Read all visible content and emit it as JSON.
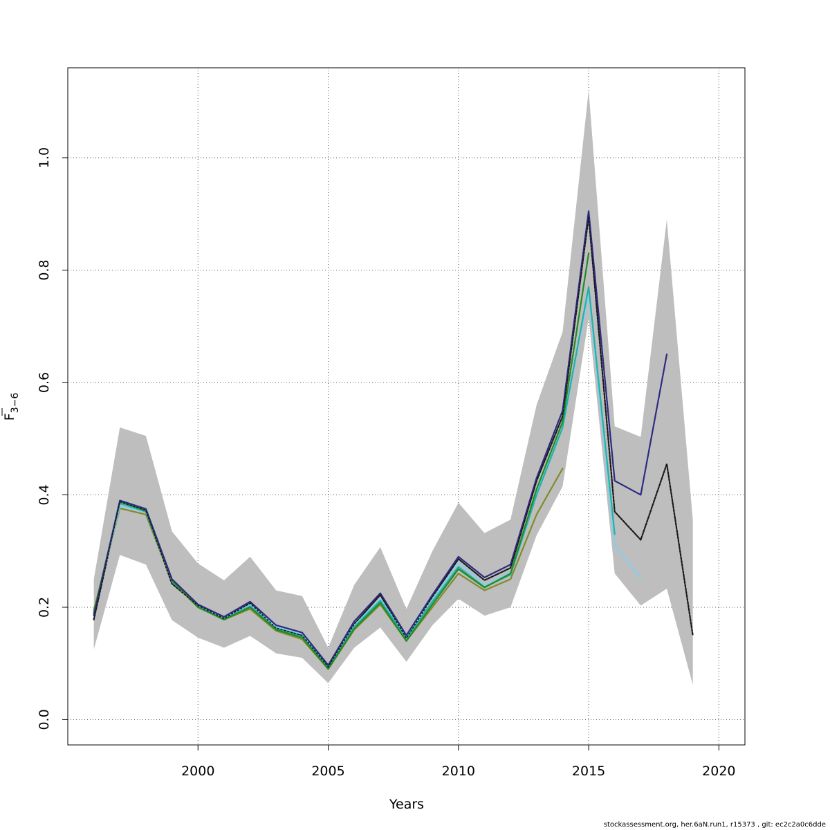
{
  "footer": "stockassessment.org, her.6aN.run1, r15373 , git: ec2c2a0c6dde",
  "chart_data": {
    "type": "line",
    "xlabel": "Years",
    "ylabel": "F",
    "ylabel_subscript": "3−6",
    "xlim": [
      1995,
      2021
    ],
    "ylim": [
      -0.045,
      1.16
    ],
    "xticks": [
      2000,
      2005,
      2010,
      2015,
      2020
    ],
    "yticks": [
      0.0,
      0.2,
      0.4,
      0.6,
      0.8,
      1.0
    ],
    "ytick_labels": [
      "0.0",
      "0.2",
      "0.4",
      "0.6",
      "0.8",
      "1.0"
    ],
    "grid": true,
    "confidence_band": {
      "color": "#bebebe",
      "x": [
        1996,
        1997,
        1998,
        1999,
        2000,
        2001,
        2002,
        2003,
        2004,
        2005,
        2006,
        2007,
        2008,
        2009,
        2010,
        2011,
        2012,
        2013,
        2014,
        2015,
        2016,
        2017,
        2018,
        2019
      ],
      "upper": [
        0.25,
        0.52,
        0.505,
        0.335,
        0.278,
        0.248,
        0.29,
        0.23,
        0.22,
        0.128,
        0.24,
        0.307,
        0.197,
        0.3,
        0.386,
        0.332,
        0.356,
        0.56,
        0.69,
        1.12,
        0.522,
        0.503,
        0.89,
        0.355
      ],
      "lower": [
        0.125,
        0.293,
        0.276,
        0.177,
        0.146,
        0.128,
        0.149,
        0.118,
        0.11,
        0.065,
        0.128,
        0.164,
        0.103,
        0.168,
        0.215,
        0.185,
        0.2,
        0.328,
        0.415,
        0.715,
        0.26,
        0.203,
        0.233,
        0.062
      ]
    },
    "series": [
      {
        "color": "#1a1a1a",
        "dashed": true,
        "width": 2.2,
        "x": [
          1996,
          1997,
          1998,
          1999,
          2000,
          2001,
          2002,
          2003,
          2004,
          2005,
          2006,
          2007,
          2008,
          2009,
          2010,
          2011,
          2012,
          2013,
          2014,
          2015,
          2016,
          2017,
          2018,
          2019
        ],
        "values": [
          0.178,
          0.388,
          0.372,
          0.242,
          0.203,
          0.18,
          0.207,
          0.163,
          0.15,
          0.094,
          0.17,
          0.222,
          0.145,
          0.218,
          0.286,
          0.248,
          0.27,
          0.425,
          0.54,
          0.895,
          0.37,
          0.32,
          0.455,
          0.15
        ]
      },
      {
        "color": "#808b2a",
        "dashed": false,
        "width": 2.2,
        "x": [
          1996,
          1997,
          1998,
          1999,
          2000,
          2001,
          2002,
          2003,
          2004,
          2005,
          2006,
          2007,
          2008,
          2009,
          2010,
          2011,
          2012,
          2013,
          2014
        ],
        "values": [
          0.195,
          0.376,
          0.365,
          0.245,
          0.2,
          0.178,
          0.197,
          0.158,
          0.143,
          0.09,
          0.16,
          0.205,
          0.14,
          0.2,
          0.26,
          0.23,
          0.25,
          0.365,
          0.447
        ]
      },
      {
        "color": "#87ceeb",
        "dashed": false,
        "width": 2.2,
        "x": [
          1996,
          1997,
          1998,
          1999,
          2000,
          2001,
          2002,
          2003,
          2004,
          2005,
          2006,
          2007,
          2008,
          2009,
          2010,
          2011,
          2012,
          2013,
          2014,
          2015,
          2016,
          2017
        ],
        "values": [
          0.19,
          0.38,
          0.37,
          0.248,
          0.202,
          0.18,
          0.205,
          0.165,
          0.152,
          0.095,
          0.168,
          0.215,
          0.148,
          0.215,
          0.28,
          0.24,
          0.262,
          0.405,
          0.52,
          0.76,
          0.31,
          0.252
        ]
      },
      {
        "color": "#20b2aa",
        "dashed": false,
        "width": 2.2,
        "x": [
          1996,
          1997,
          1998,
          1999,
          2000,
          2001,
          2002,
          2003,
          2004,
          2005,
          2006,
          2007,
          2008,
          2009,
          2010,
          2011,
          2012,
          2013,
          2014,
          2015,
          2016
        ],
        "values": [
          0.188,
          0.385,
          0.37,
          0.246,
          0.201,
          0.179,
          0.202,
          0.162,
          0.148,
          0.093,
          0.165,
          0.212,
          0.145,
          0.21,
          0.272,
          0.236,
          0.258,
          0.4,
          0.52,
          0.77,
          0.33
        ]
      },
      {
        "color": "#228b22",
        "dashed": false,
        "width": 2.2,
        "x": [
          1996,
          1997,
          1998,
          1999,
          2000,
          2001,
          2002,
          2003,
          2004,
          2005,
          2006,
          2007,
          2008,
          2009,
          2010,
          2011,
          2012,
          2013,
          2014,
          2015
        ],
        "values": [
          0.19,
          0.388,
          0.372,
          0.248,
          0.2,
          0.178,
          0.2,
          0.16,
          0.146,
          0.09,
          0.162,
          0.208,
          0.14,
          0.205,
          0.268,
          0.235,
          0.26,
          0.41,
          0.53,
          0.83
        ]
      },
      {
        "color": "#2e2a80",
        "dashed": false,
        "width": 2.2,
        "x": [
          1996,
          1997,
          1998,
          1999,
          2000,
          2001,
          2002,
          2003,
          2004,
          2005,
          2006,
          2007,
          2008,
          2009,
          2010,
          2011,
          2012,
          2013,
          2014,
          2015,
          2016,
          2017,
          2018
        ],
        "values": [
          0.185,
          0.39,
          0.375,
          0.25,
          0.205,
          0.183,
          0.21,
          0.168,
          0.155,
          0.097,
          0.175,
          0.225,
          0.15,
          0.222,
          0.29,
          0.253,
          0.276,
          0.43,
          0.55,
          0.905,
          0.425,
          0.4,
          0.65
        ]
      }
    ]
  }
}
